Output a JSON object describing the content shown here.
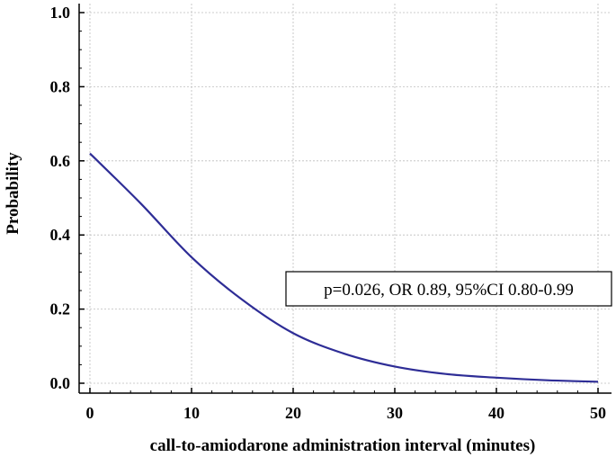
{
  "chart_data": {
    "type": "line",
    "xlabel": "call-to-amiodarone administration interval (minutes)",
    "ylabel": "Probability",
    "xlim": [
      0,
      50
    ],
    "ylim": [
      0,
      1.0
    ],
    "x_ticks": [
      0,
      10,
      20,
      30,
      40,
      50
    ],
    "x_tick_labels": [
      "0",
      "10",
      "20",
      "30",
      "40",
      "50"
    ],
    "y_ticks": [
      0,
      0.2,
      0.4,
      0.6,
      0.8,
      1.0
    ],
    "y_tick_labels": [
      "0.0",
      "0.2",
      "0.4",
      "0.6",
      "0.8",
      "1.0"
    ],
    "grid": true,
    "series": [
      {
        "color": "#2e2d96",
        "x": [
          0,
          5,
          10,
          15,
          20,
          25,
          30,
          35,
          40,
          45,
          50
        ],
        "y": [
          0.62,
          0.485,
          0.34,
          0.225,
          0.135,
          0.08,
          0.045,
          0.025,
          0.015,
          0.008,
          0.004
        ]
      }
    ],
    "annotation": "p=0.026, OR 0.89, 95%CI 0.80-0.99"
  }
}
